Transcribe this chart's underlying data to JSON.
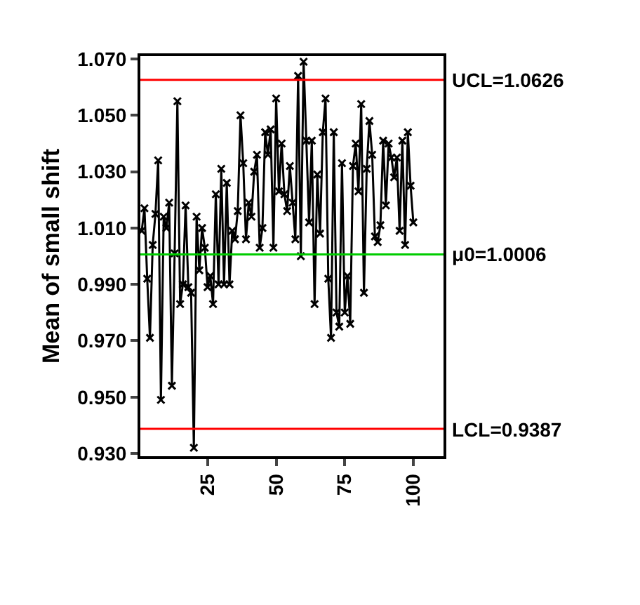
{
  "chart_data": {
    "type": "line",
    "ylabel": "Mean of small shift",
    "x": [
      1,
      2,
      3,
      4,
      5,
      6,
      7,
      8,
      9,
      10,
      11,
      12,
      13,
      14,
      15,
      16,
      17,
      18,
      19,
      20,
      21,
      22,
      23,
      24,
      25,
      26,
      27,
      28,
      29,
      30,
      31,
      32,
      33,
      34,
      35,
      36,
      37,
      38,
      39,
      40,
      41,
      42,
      43,
      44,
      45,
      46,
      47,
      48,
      49,
      50,
      51,
      52,
      53,
      54,
      55,
      56,
      57,
      58,
      59,
      60,
      61,
      62,
      63,
      64,
      65,
      66,
      67,
      68,
      69,
      70,
      71,
      72,
      73,
      74,
      75,
      76,
      77,
      78,
      79,
      80,
      81,
      82,
      83,
      84,
      85,
      86,
      87,
      88,
      89,
      90,
      91,
      92,
      93,
      94,
      95,
      96,
      97,
      98,
      99,
      100
    ],
    "series": [
      {
        "color": "#000000",
        "values": [
          1.009,
          1.017,
          0.992,
          0.971,
          1.004,
          1.015,
          1.034,
          0.949,
          1.014,
          1.01,
          1.019,
          0.954,
          1.001,
          1.055,
          0.983,
          0.99,
          1.018,
          0.989,
          0.987,
          0.932,
          1.014,
          0.995,
          1.01,
          1.003,
          0.989,
          0.993,
          0.983,
          1.022,
          0.99,
          1.031,
          0.99,
          1.026,
          0.99,
          1.009,
          1.006,
          1.016,
          1.05,
          1.033,
          1.006,
          1.019,
          1.014,
          1.03,
          1.036,
          1.003,
          1.01,
          1.044,
          1.036,
          1.045,
          1.003,
          1.056,
          1.023,
          1.04,
          1.022,
          1.016,
          1.032,
          1.019,
          1.006,
          1.064,
          1.0,
          1.069,
          1.041,
          1.012,
          1.041,
          0.983,
          1.029,
          1.008,
          1.044,
          1.056,
          0.992,
          0.971,
          1.044,
          0.98,
          0.975,
          1.033,
          0.98,
          0.993,
          0.976,
          1.032,
          1.04,
          1.023,
          1.054,
          0.987,
          1.031,
          1.048,
          1.036,
          1.007,
          1.005,
          1.011,
          1.041,
          1.018,
          1.04,
          1.035,
          1.028,
          1.035,
          1.009,
          1.041,
          1.004,
          1.044,
          1.025,
          1.012
        ]
      }
    ],
    "xlim": [
      0.5,
      111
    ],
    "xticks": [
      25,
      50,
      75,
      100
    ],
    "ylim": [
      0.929,
      1.071
    ],
    "yticks": [
      {
        "value": 0.93,
        "label": "0.930"
      },
      {
        "value": 0.95,
        "label": "0.950"
      },
      {
        "value": 0.97,
        "label": "0.970"
      },
      {
        "value": 0.99,
        "label": "0.990"
      },
      {
        "value": 1.01,
        "label": "1.010"
      },
      {
        "value": 1.03,
        "label": "1.030"
      },
      {
        "value": 1.05,
        "label": "1.050"
      },
      {
        "value": 1.07,
        "label": "1.070"
      }
    ],
    "ref_lines": [
      {
        "axis": "y",
        "value": 1.0626,
        "label": "UCL=1.0626",
        "color": "#ff0000"
      },
      {
        "axis": "y",
        "value": 1.0006,
        "label": "μ0=1.0006",
        "color": "#00cc00"
      },
      {
        "axis": "y",
        "value": 0.9387,
        "label": "LCL=0.9387",
        "color": "#ff0000"
      }
    ],
    "marker": "cross",
    "line_style": "solid"
  }
}
